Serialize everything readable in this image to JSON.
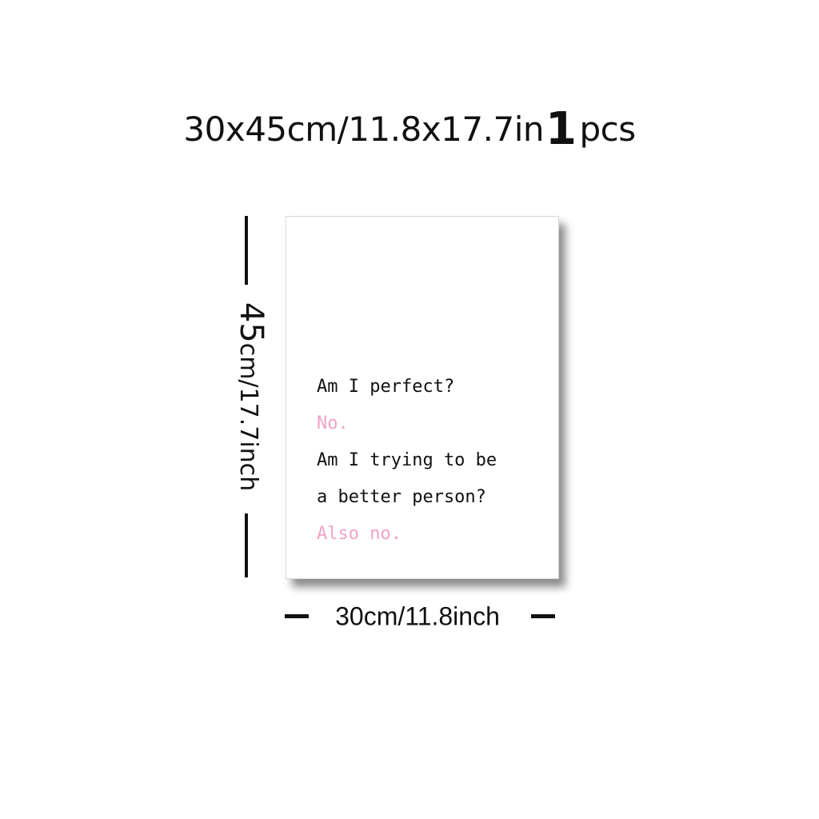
{
  "heading": {
    "size_text": "30x45cm/11.8x17.7in",
    "qty_number": "1",
    "qty_unit": "pcs"
  },
  "dimensions": {
    "height_big": "45",
    "height_rest": "cm/17.7inch",
    "width": "30cm/11.8inch"
  },
  "poster": {
    "lines": [
      {
        "text": "Am I perfect?",
        "color": "#111111"
      },
      {
        "text": "No.",
        "color": "#f0a3c8"
      },
      {
        "text": "Am I trying to be",
        "color": "#111111"
      },
      {
        "text": "a better person?",
        "color": "#111111"
      },
      {
        "text": "Also no.",
        "color": "#f0a3c8"
      }
    ]
  },
  "colors": {
    "text": "#111111",
    "accent_pink": "#f0a3c8"
  }
}
